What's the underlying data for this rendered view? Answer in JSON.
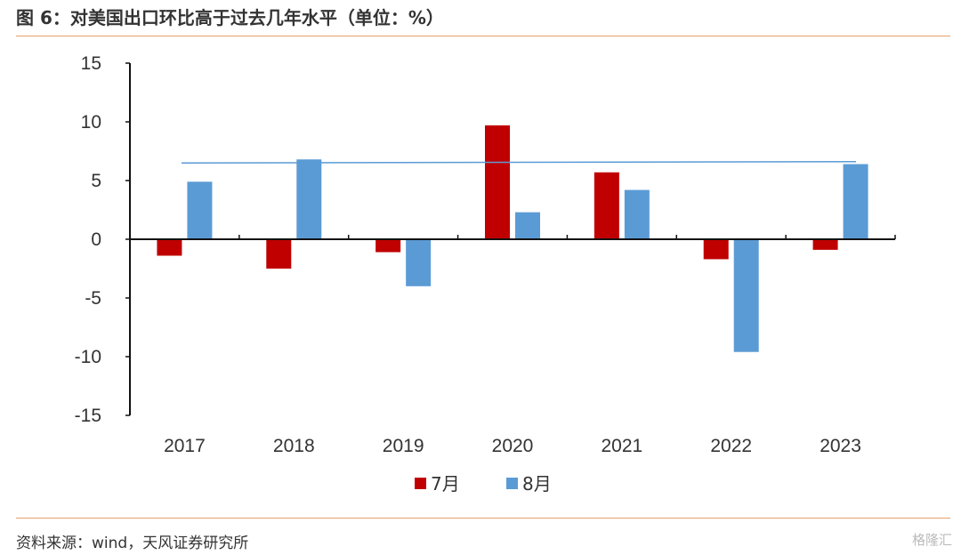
{
  "title": "图 6：对美国出口环比高于过去几年水平（单位：%）",
  "source": "资料来源：wind，天风证券研究所",
  "watermark": "格隆汇",
  "colors": {
    "series_jul": "#c00000",
    "series_aug": "#5b9bd5",
    "rule": "#e8a06a"
  },
  "chart_data": {
    "type": "bar",
    "categories": [
      "2017",
      "2018",
      "2019",
      "2020",
      "2021",
      "2022",
      "2023"
    ],
    "series": [
      {
        "name": "7月",
        "values": [
          -1.4,
          -2.5,
          -1.1,
          9.7,
          5.7,
          -1.7,
          -0.9
        ]
      },
      {
        "name": "8月",
        "values": [
          4.9,
          6.8,
          -4.0,
          2.3,
          4.2,
          -9.6,
          6.4
        ]
      }
    ],
    "reference_line": 6.5,
    "yticks": [
      "15",
      "10",
      "5",
      "0",
      "-5",
      "-10",
      "-15"
    ],
    "ylim": [
      -15,
      15
    ],
    "legend_position": "bottom"
  }
}
